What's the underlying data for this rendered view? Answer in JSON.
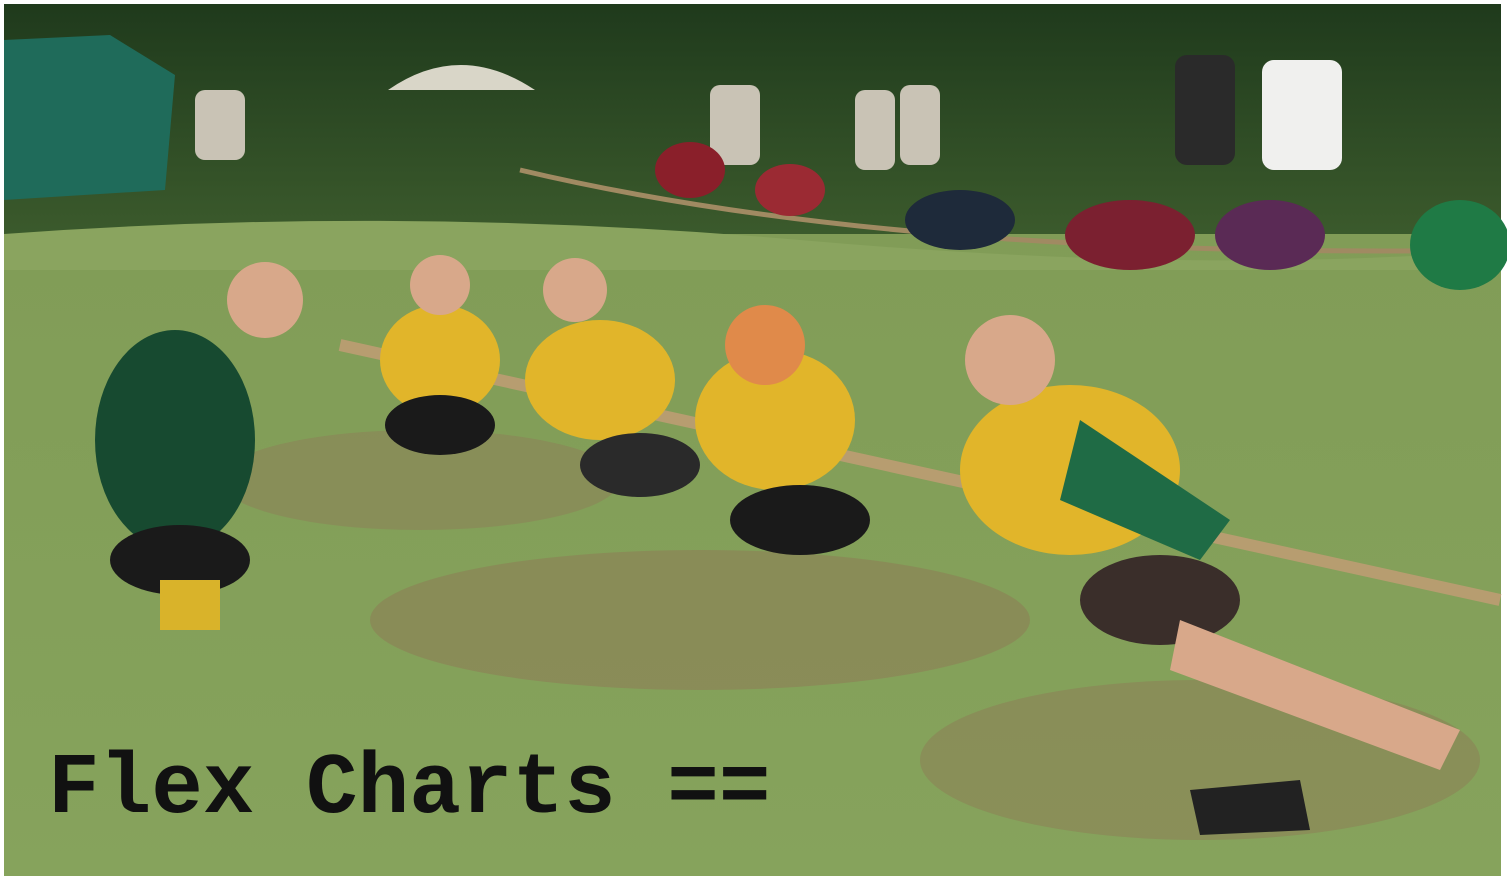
{
  "caption": "Flex Charts =="
}
